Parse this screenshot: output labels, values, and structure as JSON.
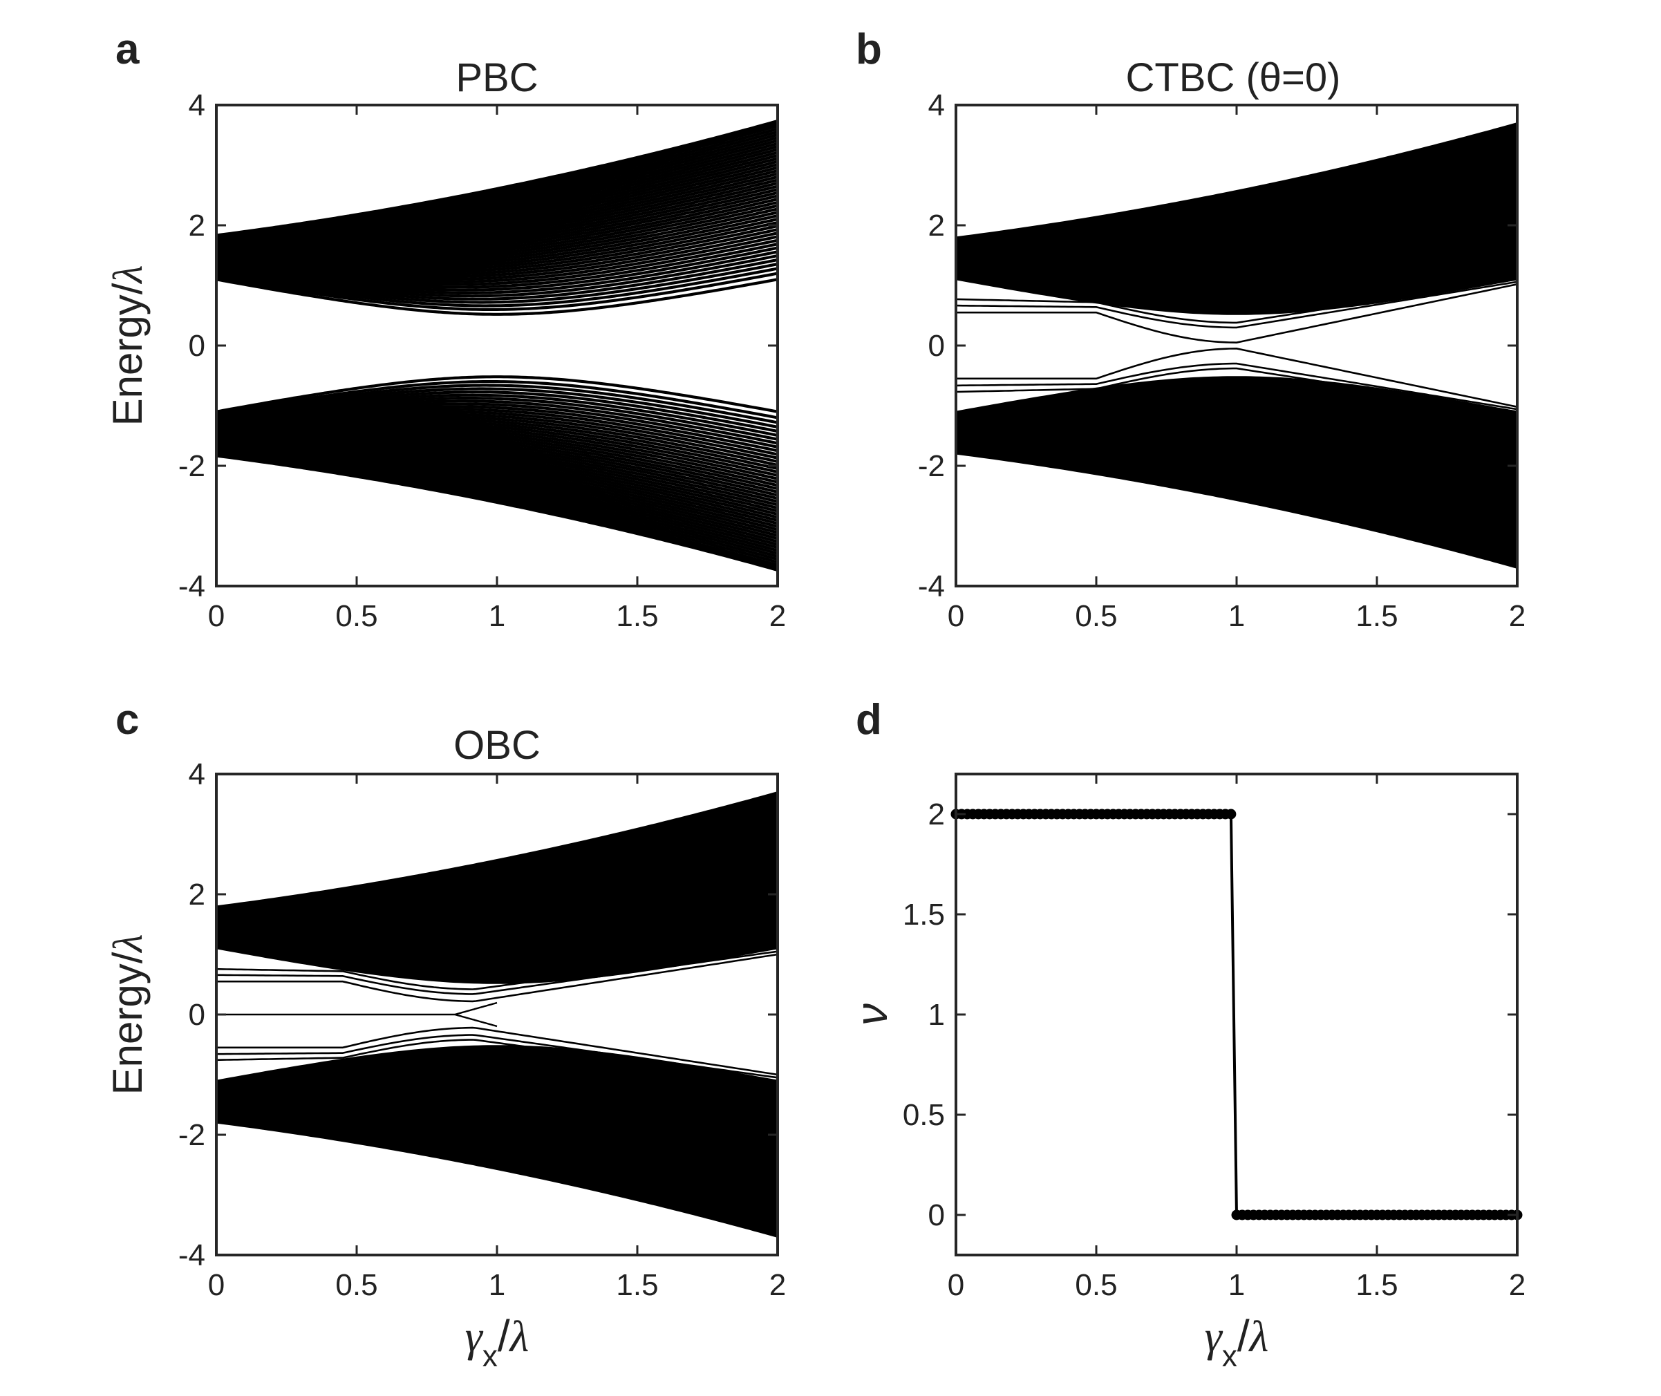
{
  "figure": {
    "panels": [
      "a",
      "b",
      "c",
      "d"
    ]
  },
  "chart_data": [
    {
      "panel": "a",
      "type": "line",
      "title": "PBC",
      "xlabel": "γx/λ",
      "ylabel": "Energy/λ",
      "xlim": [
        0,
        2
      ],
      "ylim": [
        -4,
        4
      ],
      "xticks": [
        "0",
        "0.5",
        "1",
        "1.5",
        "2"
      ],
      "yticks": [
        "-4",
        "-2",
        "0",
        "2",
        "4"
      ],
      "bands": {
        "outer_edge_at": {
          "x": [
            0,
            1,
            2
          ],
          "y": [
            1.8,
            2.5,
            3.35
          ]
        },
        "inner_edge_at": {
          "x": [
            0,
            1,
            2
          ],
          "y": [
            1.1,
            0.52,
            1.12
          ]
        },
        "symmetric_about_zero": true,
        "gap_at_x1": [
          -0.52,
          0.52
        ]
      },
      "edge_states": false
    },
    {
      "panel": "b",
      "type": "line",
      "title": "CTBC (θ=0)",
      "xlabel": "",
      "ylabel": "",
      "xlim": [
        0,
        2
      ],
      "ylim": [
        -4,
        4
      ],
      "xticks": [
        "0",
        "0.5",
        "1",
        "1.5",
        "2"
      ],
      "yticks": [
        "-4",
        "-2",
        "0",
        "2",
        "4"
      ],
      "bands": {
        "outer_edge_at": {
          "x": [
            0,
            1,
            2
          ],
          "y": [
            1.8,
            2.5,
            3.35
          ]
        },
        "inner_edge_at": {
          "x": [
            0,
            1,
            2
          ],
          "y": [
            1.1,
            0.52,
            1.12
          ]
        },
        "symmetric_about_zero": true
      },
      "in_gap_states": {
        "flat_levels": [
          0.55,
          0.65,
          0.72,
          -0.55,
          -0.65,
          -0.72
        ],
        "min_gap_at_x1": [
          -0.05,
          0.05
        ],
        "end_values_at_x2": [
          1.0,
          1.05,
          -1.0,
          -1.05
        ]
      }
    },
    {
      "panel": "c",
      "type": "line",
      "title": "OBC",
      "xlabel": "γx/λ",
      "ylabel": "Energy/λ",
      "xlim": [
        0,
        2
      ],
      "ylim": [
        -4,
        4
      ],
      "xticks": [
        "0",
        "0.5",
        "1",
        "1.5",
        "2"
      ],
      "yticks": [
        "-4",
        "-2",
        "0",
        "2",
        "4"
      ],
      "bands": {
        "outer_edge_at": {
          "x": [
            0,
            1,
            2
          ],
          "y": [
            1.8,
            2.5,
            3.35
          ]
        },
        "inner_edge_at": {
          "x": [
            0,
            1,
            2
          ],
          "y": [
            1.1,
            0.52,
            1.12
          ]
        },
        "symmetric_about_zero": true
      },
      "zero_mode": {
        "x_range": [
          0,
          0.85
        ],
        "y": 0
      },
      "in_gap_states": {
        "flat_levels": [
          0.55,
          0.65,
          0.72,
          -0.55,
          -0.65,
          -0.72
        ],
        "min_gap_at_x09": [
          -0.22,
          0.22
        ],
        "end_values_at_x2": [
          1.0,
          1.08,
          -1.0,
          -1.08
        ]
      }
    },
    {
      "panel": "d",
      "type": "scatter",
      "title": "",
      "xlabel": "γx/λ",
      "ylabel": "ν",
      "xlim": [
        0,
        2
      ],
      "ylim": [
        -0.2,
        2.2
      ],
      "xticks": [
        "0",
        "0.5",
        "1",
        "1.5",
        "2"
      ],
      "yticks": [
        "0",
        "0.5",
        "1",
        "1.5",
        "2"
      ],
      "series": [
        {
          "name": "ν",
          "x_range": [
            0,
            0.98
          ],
          "x_step": 0.02,
          "y": 2
        },
        {
          "name": "ν",
          "x_range": [
            1.0,
            2.0
          ],
          "x_step": 0.02,
          "y": 0
        }
      ]
    }
  ]
}
